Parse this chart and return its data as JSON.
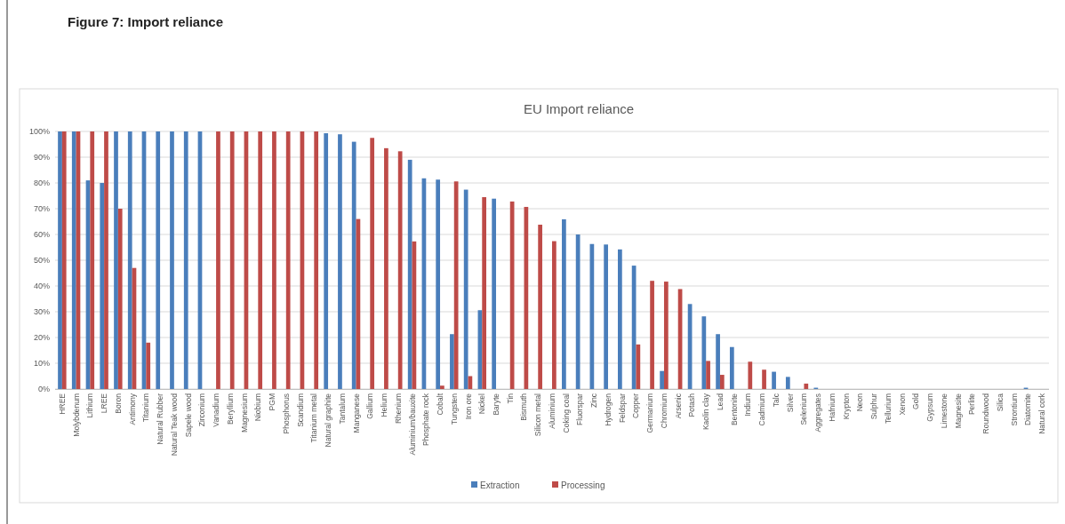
{
  "chart_data": {
    "type": "bar",
    "title": "EU Import reliance",
    "annotations": [
      "Figure 7: Import reliance"
    ],
    "categories": [
      "HREE",
      "Molybdenum",
      "Lithium",
      "LREE",
      "Boron",
      "Antimony",
      "Titanium",
      "Natural Rubber",
      "Natural Teak wood",
      "Sapele wood",
      "Zirconium",
      "Vanadium",
      "Beryllium",
      "Magnesium",
      "Niobium",
      "PGM",
      "Phosphorus",
      "Scandium",
      "Titanium metal",
      "Natural graphite",
      "Tantalum",
      "Manganese",
      "Gallium",
      "Helium",
      "Rhenium",
      "Aluminium/bauxite",
      "Phosphate rock",
      "Cobalt",
      "Tungsten",
      "Iron ore",
      "Nickel",
      "Baryte",
      "Tin",
      "Bismuth",
      "Silicon metal",
      "Aluminium",
      "Coking coal",
      "Fluorspar",
      "Zinc",
      "Hydrogen",
      "Feldspar",
      "Copper",
      "Germanium",
      "Chromium",
      "Arsenic",
      "Potash",
      "Kaolin clay",
      "Lead",
      "Bentonite",
      "Indium",
      "Cadmium",
      "Talc",
      "Silver",
      "Selenium",
      "Aggregates",
      "Hafnium",
      "Krypton",
      "Neon",
      "Sulphur",
      "Tellurium",
      "Xenon",
      "Gold",
      "Gypsum",
      "Limestone",
      "Magnesite",
      "Perlite",
      "Roundwood",
      "Silica",
      "Strontium",
      "Diatomite",
      "Natural cork"
    ],
    "series": [
      {
        "name": "Extraction",
        "color": "#4a7ebb",
        "values": [
          100,
          100,
          81,
          80,
          100,
          100,
          100,
          100,
          100,
          100,
          100,
          null,
          null,
          null,
          null,
          null,
          null,
          null,
          null,
          99.3,
          98.9,
          96,
          null,
          null,
          null,
          89,
          81.8,
          81.3,
          21.3,
          77.4,
          30.6,
          73.9,
          null,
          null,
          null,
          null,
          65.9,
          60,
          56.3,
          56.1,
          54.2,
          47.9,
          null,
          7,
          null,
          33,
          28.2,
          21.3,
          16.3,
          null,
          null,
          6.7,
          4.7,
          null,
          0.5,
          null,
          null,
          null,
          null,
          null,
          null,
          null,
          null,
          null,
          null,
          null,
          null,
          null,
          null,
          0.5,
          null
        ]
      },
      {
        "name": "Processing",
        "color": "#be4b48",
        "values": [
          100,
          100,
          100,
          100,
          70,
          47,
          18,
          null,
          null,
          null,
          null,
          100,
          100,
          100,
          100,
          100,
          100,
          100,
          100,
          null,
          null,
          66,
          97.5,
          93.5,
          92.3,
          57.3,
          null,
          1.3,
          80.6,
          5,
          74.5,
          null,
          72.8,
          70.7,
          63.8,
          57.4,
          null,
          null,
          null,
          null,
          null,
          17.3,
          42,
          41.7,
          38.8,
          null,
          10.9,
          5.5,
          null,
          10.6,
          7.5,
          null,
          null,
          2.1,
          null,
          null,
          null,
          null,
          null,
          null,
          null,
          null,
          null,
          null,
          null,
          null,
          null,
          null,
          null,
          null,
          null
        ]
      }
    ],
    "ylim": [
      0,
      100
    ],
    "yticks": [
      {
        "value": 0,
        "label": "0%"
      },
      {
        "value": 10,
        "label": "10%"
      },
      {
        "value": 20,
        "label": "20%"
      },
      {
        "value": 30,
        "label": "30%"
      },
      {
        "value": 40,
        "label": "40%"
      },
      {
        "value": 50,
        "label": "50%"
      },
      {
        "value": 60,
        "label": "60%"
      },
      {
        "value": 70,
        "label": "70%"
      },
      {
        "value": 80,
        "label": "80%"
      },
      {
        "value": 90,
        "label": "90%"
      },
      {
        "value": 100,
        "label": "100%"
      }
    ],
    "grid": "y",
    "legend": "bottom"
  }
}
